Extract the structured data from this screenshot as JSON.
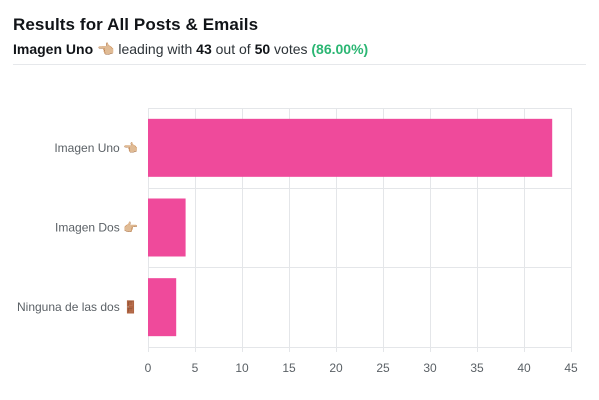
{
  "header": {
    "title": "Results for All Posts & Emails",
    "leader_name": "Imagen Uno",
    "leader_emoji": "👈🏼",
    "leading_text": "leading with",
    "leader_votes": "43",
    "out_of_text": "out of",
    "total_votes": "50",
    "votes_text": "votes",
    "leader_percent": "(86.00%)"
  },
  "colors": {
    "bar": "#ef4a9b",
    "grid": "#e4e6e9",
    "axis_text": "#5b6166",
    "percent": "#2bb673"
  },
  "chart_data": {
    "type": "bar",
    "orientation": "horizontal",
    "categories": [
      "Imagen Uno 👈🏼",
      "Imagen Dos 👉🏼",
      "Ninguna de las dos 🚪"
    ],
    "values": [
      43,
      4,
      3
    ],
    "xlim": [
      0,
      45
    ],
    "xticks": [
      0,
      5,
      10,
      15,
      20,
      25,
      30,
      35,
      40,
      45
    ],
    "grid": true,
    "legend": "none"
  }
}
